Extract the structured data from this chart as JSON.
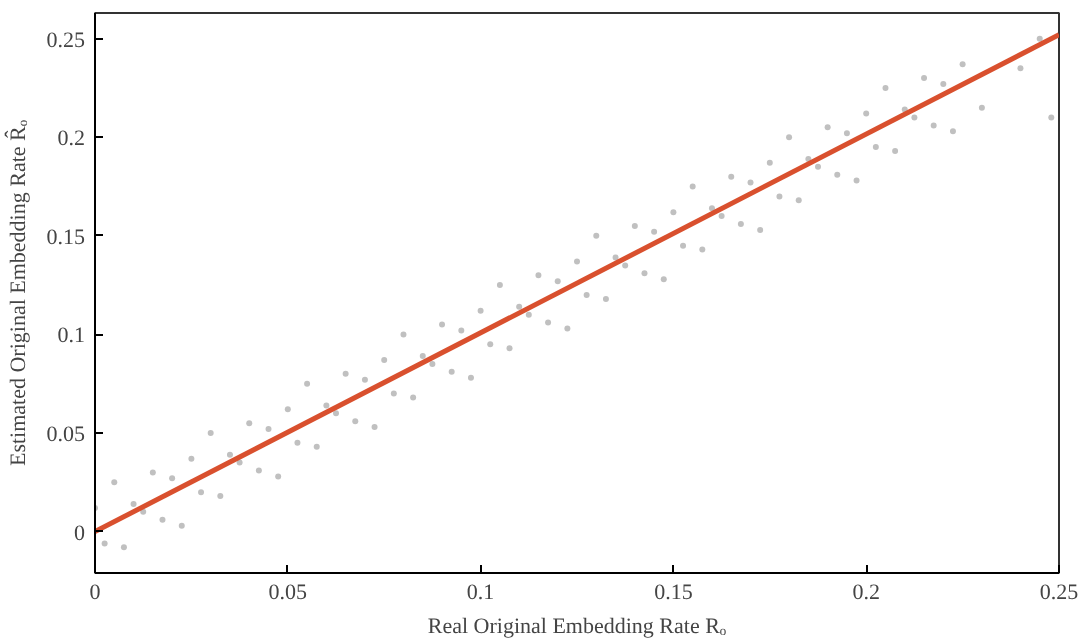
{
  "chart_data": {
    "type": "scatter",
    "xlabel": "Real Original Embedding Rate Rₒ",
    "ylabel": "Estimated Original Embedding Rate R̂ₒ",
    "xlim": [
      0,
      0.25
    ],
    "ylim": [
      -0.021,
      0.263
    ],
    "xticks": [
      0,
      0.05,
      0.1,
      0.15,
      0.2,
      0.25
    ],
    "yticks": [
      0,
      0.05,
      0.1,
      0.15,
      0.2,
      0.25
    ],
    "marker": "circle",
    "series": [
      {
        "color": "#c0c0c0",
        "x": [
          0,
          0.0025,
          0.005,
          0.0075,
          0.01,
          0.0125,
          0.015,
          0.0175,
          0.02,
          0.0225,
          0.025,
          0.0275,
          0.03,
          0.0325,
          0.035,
          0.0375,
          0.04,
          0.0425,
          0.045,
          0.0475,
          0.05,
          0.0525,
          0.055,
          0.0575,
          0.06,
          0.0625,
          0.065,
          0.0675,
          0.07,
          0.0725,
          0.075,
          0.0775,
          0.08,
          0.0825,
          0.085,
          0.0875,
          0.09,
          0.0925,
          0.095,
          0.0975,
          0.1,
          0.1025,
          0.105,
          0.1075,
          0.11,
          0.1125,
          0.115,
          0.1175,
          0.12,
          0.1225,
          0.125,
          0.1275,
          0.13,
          0.1325,
          0.135,
          0.1375,
          0.14,
          0.1425,
          0.145,
          0.1475,
          0.15,
          0.1525,
          0.155,
          0.1575,
          0.16,
          0.1625,
          0.165,
          0.1675,
          0.17,
          0.1725,
          0.175,
          0.1775,
          0.18,
          0.1825,
          0.185,
          0.1875,
          0.19,
          0.1925,
          0.195,
          0.1975,
          0.2,
          0.2025,
          0.205,
          0.2075,
          0.21,
          0.2125,
          0.215,
          0.2175,
          0.22,
          0.2225,
          0.225,
          0.23,
          0.24,
          0.245,
          0.248
        ],
        "values": [
          0.012,
          -0.006,
          0.025,
          -0.008,
          0.014,
          0.01,
          0.03,
          0.006,
          0.027,
          0.003,
          0.037,
          0.02,
          0.05,
          0.018,
          0.039,
          0.035,
          0.055,
          0.031,
          0.052,
          0.028,
          0.062,
          0.045,
          0.075,
          0.043,
          0.064,
          0.06,
          0.08,
          0.056,
          0.077,
          0.053,
          0.087,
          0.07,
          0.1,
          0.068,
          0.089,
          0.085,
          0.105,
          0.081,
          0.102,
          0.078,
          0.112,
          0.095,
          0.125,
          0.093,
          0.114,
          0.11,
          0.13,
          0.106,
          0.127,
          0.103,
          0.137,
          0.12,
          0.15,
          0.118,
          0.139,
          0.135,
          0.155,
          0.131,
          0.152,
          0.128,
          0.162,
          0.145,
          0.175,
          0.143,
          0.164,
          0.16,
          0.18,
          0.156,
          0.177,
          0.153,
          0.187,
          0.17,
          0.2,
          0.168,
          0.189,
          0.185,
          0.205,
          0.181,
          0.202,
          0.178,
          0.212,
          0.195,
          0.225,
          0.193,
          0.214,
          0.21,
          0.23,
          0.206,
          0.227,
          0.203,
          0.237,
          0.215,
          0.235,
          0.25,
          0.21
        ]
      },
      {
        "type": "line",
        "marker": "none",
        "color": "#d9502e",
        "x": [
          0,
          0.25
        ],
        "values": [
          0,
          0.252
        ]
      }
    ]
  }
}
